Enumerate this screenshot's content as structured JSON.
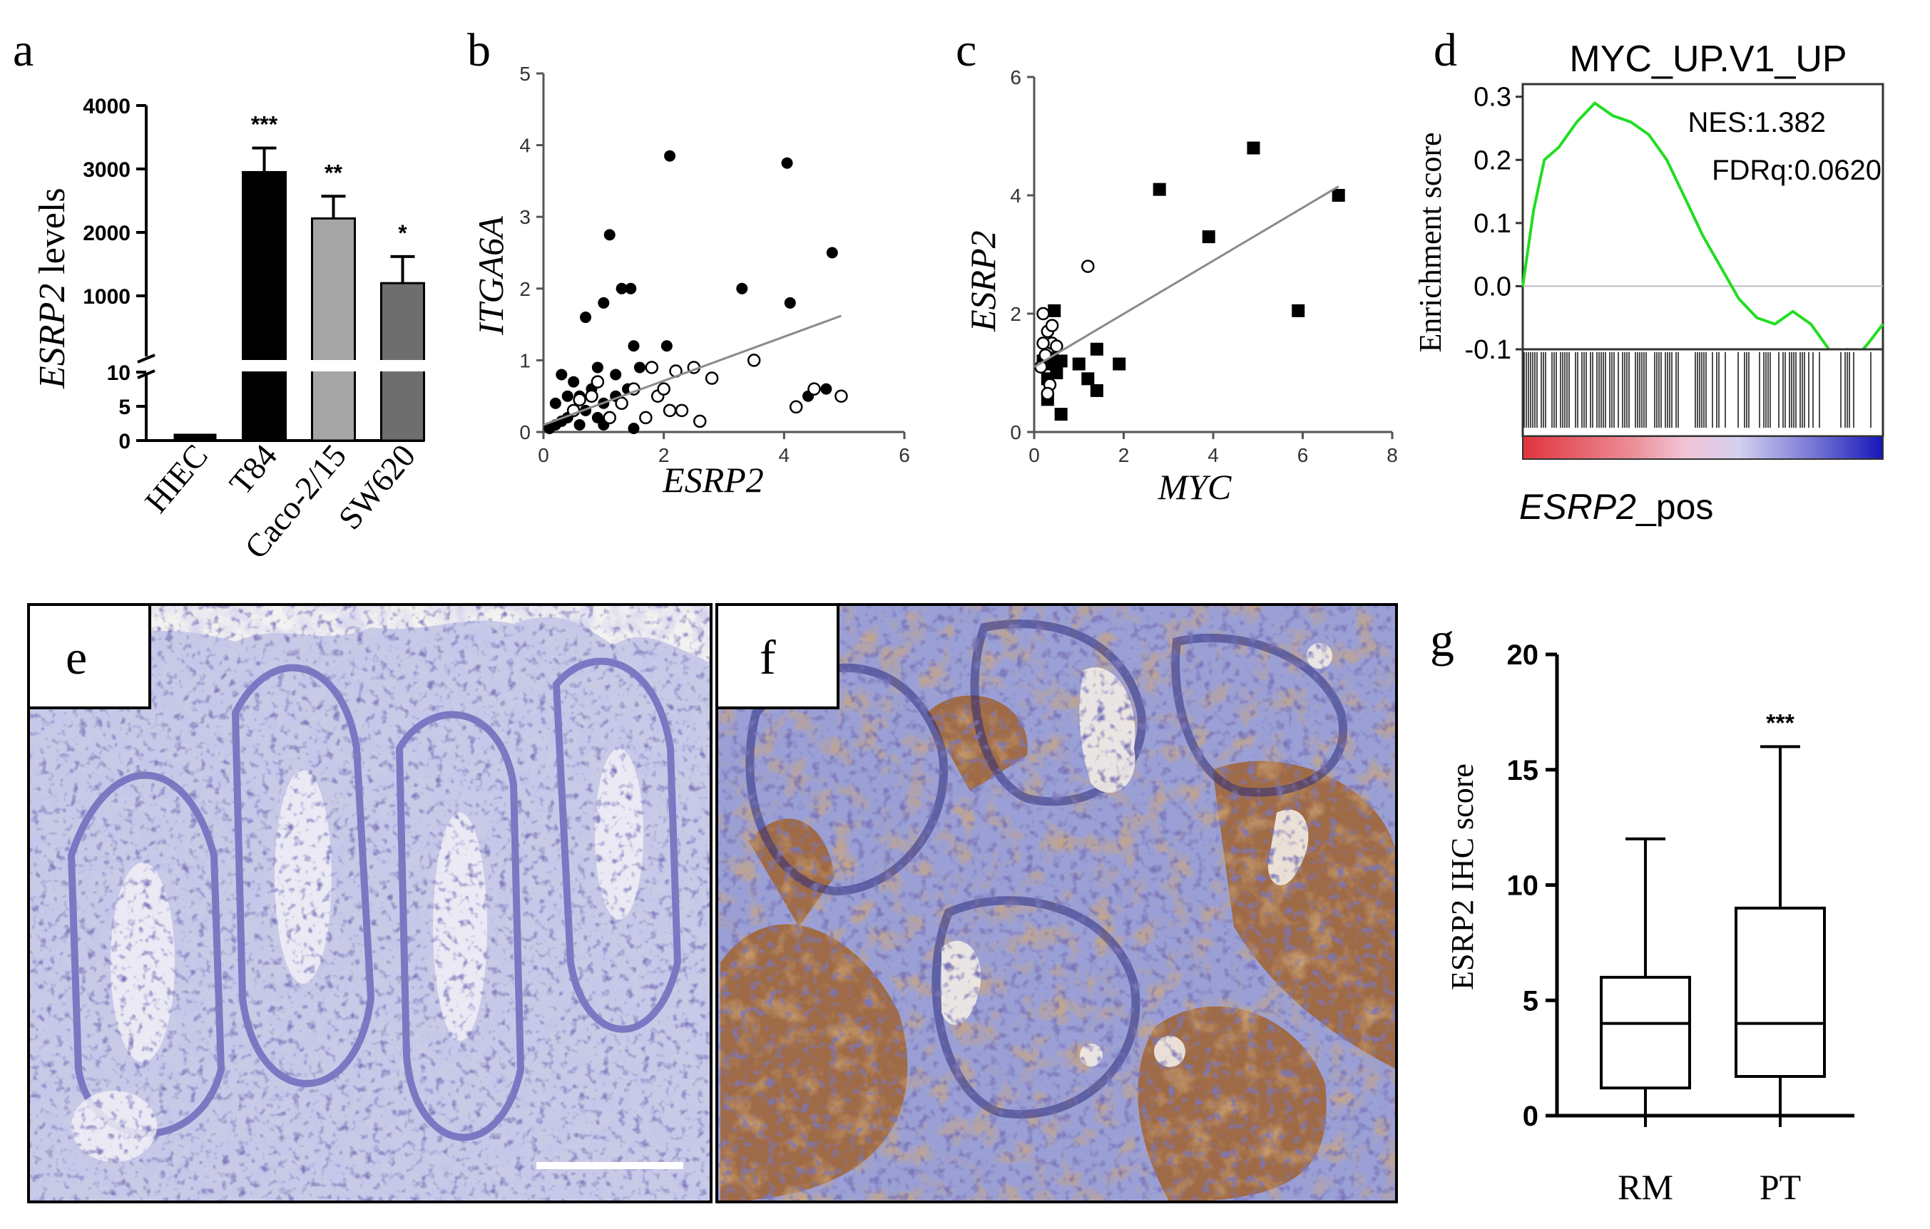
{
  "chart_data": [
    {
      "panel": "a",
      "type": "bar",
      "categories": [
        "HIEC",
        "T84",
        "Caco-2/15",
        "SW620"
      ],
      "values": [
        1,
        2950,
        2220,
        1200
      ],
      "errors": [
        0,
        380,
        350,
        420
      ],
      "significance": [
        "",
        "***",
        "**",
        "*"
      ],
      "colors": [
        "#000000",
        "#000000",
        "#a6a6a6",
        "#6e6e6e"
      ],
      "ylabel_italic": "ESRP2",
      "ylabel_rest": " levels",
      "upper_ticks": [
        "1000",
        "2000",
        "3000",
        "4000"
      ],
      "lower_ticks": [
        "0",
        "5",
        "10"
      ],
      "ylim_upper": [
        0,
        4000
      ],
      "ylim_lower": [
        0,
        10
      ],
      "axis_break": true
    },
    {
      "panel": "b",
      "type": "scatter",
      "xlabel": "ESRP2",
      "ylabel": "ITGA6A",
      "xlim": [
        0,
        6
      ],
      "ylim": [
        0,
        5
      ],
      "xticks": [
        "0",
        "2",
        "4",
        "6"
      ],
      "yticks": [
        "0",
        "1",
        "2",
        "3",
        "4",
        "5"
      ],
      "series": [
        {
          "marker": "filled-circle",
          "points": [
            [
              0.1,
              0.05
            ],
            [
              0.2,
              0.1
            ],
            [
              0.3,
              0.15
            ],
            [
              0.4,
              0.2
            ],
            [
              0.5,
              0.3
            ],
            [
              0.6,
              0.5
            ],
            [
              0.7,
              0.3
            ],
            [
              0.8,
              0.6
            ],
            [
              0.9,
              0.2
            ],
            [
              1.0,
              0.4
            ],
            [
              1.2,
              0.5
            ],
            [
              0.3,
              0.8
            ],
            [
              0.5,
              0.7
            ],
            [
              0.2,
              0.4
            ],
            [
              0.6,
              0.1
            ],
            [
              0.7,
              1.6
            ],
            [
              1.0,
              1.8
            ],
            [
              1.1,
              2.75
            ],
            [
              1.3,
              2.0
            ],
            [
              1.45,
              2.0
            ],
            [
              1.2,
              0.8
            ],
            [
              1.4,
              0.6
            ],
            [
              1.6,
              0.9
            ],
            [
              1.5,
              1.2
            ],
            [
              2.05,
              1.2
            ],
            [
              2.1,
              3.85
            ],
            [
              3.3,
              2.0
            ],
            [
              4.05,
              3.75
            ],
            [
              4.1,
              1.8
            ],
            [
              4.4,
              0.5
            ],
            [
              4.7,
              0.6
            ],
            [
              4.8,
              2.5
            ],
            [
              1.0,
              0.1
            ],
            [
              1.5,
              0.05
            ],
            [
              0.9,
              0.9
            ],
            [
              0.4,
              0.5
            ]
          ]
        },
        {
          "marker": "open-circle",
          "points": [
            [
              0.5,
              0.3
            ],
            [
              0.8,
              0.5
            ],
            [
              1.1,
              0.2
            ],
            [
              1.3,
              0.4
            ],
            [
              1.5,
              0.6
            ],
            [
              1.8,
              0.9
            ],
            [
              1.9,
              0.5
            ],
            [
              2.0,
              0.6
            ],
            [
              2.2,
              0.85
            ],
            [
              2.3,
              0.3
            ],
            [
              2.5,
              0.9
            ],
            [
              2.6,
              0.15
            ],
            [
              2.8,
              0.75
            ],
            [
              3.5,
              1.0
            ],
            [
              4.2,
              0.35
            ],
            [
              4.5,
              0.6
            ],
            [
              4.95,
              0.5
            ],
            [
              0.6,
              0.45
            ],
            [
              0.9,
              0.7
            ],
            [
              1.7,
              0.2
            ],
            [
              2.1,
              0.3
            ]
          ]
        }
      ],
      "trendline": [
        [
          0,
          0.1
        ],
        [
          4.95,
          1.62
        ]
      ]
    },
    {
      "panel": "c",
      "type": "scatter",
      "xlabel": "MYC",
      "ylabel": "ESRP2",
      "xlim": [
        0,
        8
      ],
      "ylim": [
        0,
        6
      ],
      "xticks": [
        "0",
        "2",
        "4",
        "6",
        "8"
      ],
      "yticks": [
        "0",
        "2",
        "4",
        "6"
      ],
      "series": [
        {
          "marker": "filled-square",
          "points": [
            [
              2.8,
              4.1
            ],
            [
              3.9,
              3.3
            ],
            [
              4.9,
              4.8
            ],
            [
              6.8,
              4.0
            ],
            [
              5.9,
              2.05
            ],
            [
              1.4,
              1.4
            ],
            [
              1.9,
              1.15
            ],
            [
              1.2,
              0.9
            ],
            [
              1.0,
              1.15
            ],
            [
              1.4,
              0.7
            ],
            [
              0.6,
              0.3
            ],
            [
              0.35,
              1.15
            ],
            [
              0.5,
              1.0
            ],
            [
              0.4,
              1.25
            ],
            [
              0.3,
              0.55
            ],
            [
              0.2,
              1.2
            ],
            [
              0.45,
              2.05
            ],
            [
              0.3,
              0.9
            ],
            [
              0.6,
              1.2
            ]
          ]
        },
        {
          "marker": "open-circle",
          "points": [
            [
              1.2,
              2.8
            ],
            [
              0.2,
              2.0
            ],
            [
              0.3,
              1.7
            ],
            [
              0.4,
              1.5
            ],
            [
              0.25,
              1.3
            ],
            [
              0.15,
              1.1
            ],
            [
              0.35,
              0.8
            ],
            [
              0.3,
              0.65
            ],
            [
              0.5,
              1.45
            ],
            [
              0.2,
              1.5
            ],
            [
              0.4,
              1.8
            ]
          ]
        }
      ],
      "trendline": [
        [
          0,
          1.1
        ],
        [
          6.8,
          4.15
        ]
      ]
    },
    {
      "panel": "d",
      "type": "line",
      "title": "MYC_UP.V1_UP",
      "ylabel": "Enrichment score",
      "xlabel_italic": "ESRP2",
      "xlabel_rest": "_pos",
      "annotations": [
        "NES:1.382",
        "FDRq:0.0620"
      ],
      "ylim": [
        -0.1,
        0.32
      ],
      "yticks": [
        "-0.1",
        "0.0",
        "0.1",
        "0.2",
        "0.3"
      ],
      "line_color": "#22dd22",
      "x": [
        0,
        0.03,
        0.06,
        0.1,
        0.15,
        0.2,
        0.25,
        0.3,
        0.35,
        0.4,
        0.45,
        0.5,
        0.55,
        0.6,
        0.65,
        0.7,
        0.75,
        0.8,
        0.85,
        0.88,
        0.9,
        0.93,
        0.96,
        1.0
      ],
      "y": [
        0.0,
        0.12,
        0.2,
        0.22,
        0.26,
        0.29,
        0.27,
        0.26,
        0.24,
        0.2,
        0.14,
        0.08,
        0.03,
        -0.02,
        -0.05,
        -0.06,
        -0.04,
        -0.06,
        -0.1,
        -0.12,
        -0.1,
        -0.11,
        -0.09,
        -0.06
      ]
    },
    {
      "panel": "g",
      "type": "box",
      "categories": [
        "RM",
        "PT"
      ],
      "ylabel": "ESRP2 IHC score",
      "ylim": [
        0,
        20
      ],
      "yticks": [
        "0",
        "5",
        "10",
        "15",
        "20"
      ],
      "boxes": [
        {
          "min": 0,
          "q1": 1.2,
          "median": 4,
          "q3": 6,
          "max": 12
        },
        {
          "min": 0,
          "q1": 1.7,
          "median": 4,
          "q3": 9,
          "max": 16
        }
      ],
      "significance": [
        "",
        "***"
      ]
    }
  ],
  "panel_labels": {
    "a": "a",
    "b": "b",
    "c": "c",
    "d": "d",
    "e": "e",
    "f": "f",
    "g": "g"
  }
}
